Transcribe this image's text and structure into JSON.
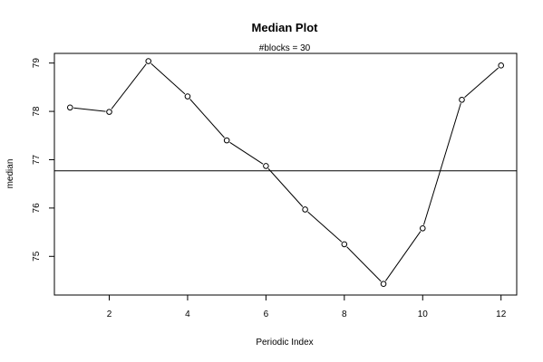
{
  "chart_data": {
    "type": "line",
    "title": "Median Plot",
    "subtitle": "#blocks =  30",
    "xlabel": "Periodic Index",
    "ylabel": "median",
    "x": [
      1,
      2,
      3,
      4,
      5,
      6,
      7,
      8,
      9,
      10,
      11,
      12
    ],
    "values": [
      78.08,
      77.99,
      79.04,
      78.31,
      77.4,
      76.87,
      75.97,
      75.25,
      74.43,
      75.58,
      78.24,
      78.95
    ],
    "reference_line": 76.77,
    "xlim": [
      0.6,
      12.4
    ],
    "ylim": [
      74.2,
      79.2
    ],
    "x_ticks": [
      2,
      4,
      6,
      8,
      10,
      12
    ],
    "y_ticks": [
      75,
      76,
      77,
      78,
      79
    ],
    "grid": false,
    "line_color": "#000000"
  }
}
